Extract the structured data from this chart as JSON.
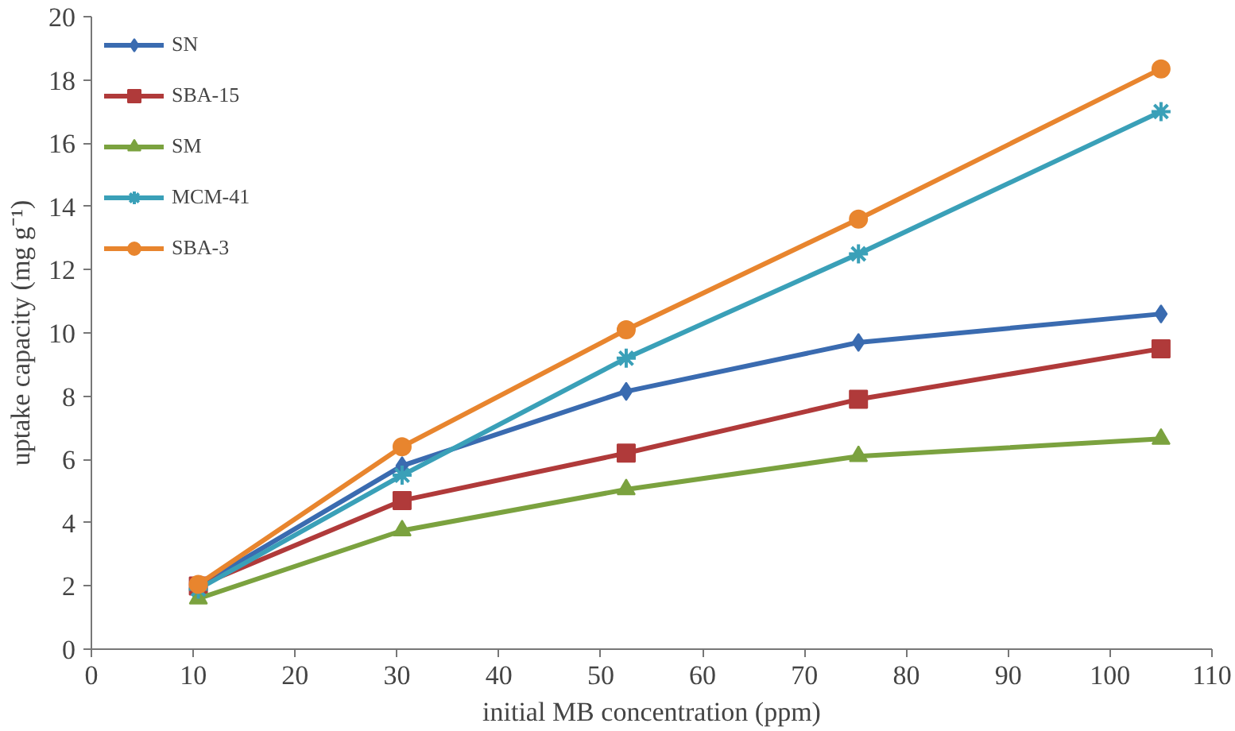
{
  "chart_data": {
    "type": "line",
    "xlabel": "initial MB concentration (ppm)",
    "ylabel": "uptake capacity (mg g⁻¹)",
    "x": [
      10.5,
      30.5,
      52.5,
      75.3,
      105
    ],
    "series": [
      {
        "name": "SN",
        "color": "#3a6bb0",
        "marker": "diamond",
        "values": [
          2.0,
          5.8,
          8.15,
          9.7,
          10.6
        ]
      },
      {
        "name": "SBA-15",
        "color": "#b03a3a",
        "marker": "square",
        "values": [
          2.0,
          4.7,
          6.2,
          7.9,
          9.5
        ]
      },
      {
        "name": "SM",
        "color": "#7ba23f",
        "marker": "triangle",
        "values": [
          1.6,
          3.75,
          5.05,
          6.1,
          6.65
        ]
      },
      {
        "name": "MCM-41",
        "color": "#3aa0b8",
        "marker": "cross",
        "values": [
          1.9,
          5.5,
          9.2,
          12.5,
          17.0
        ]
      },
      {
        "name": "SBA-3",
        "color": "#e8852e",
        "marker": "circle",
        "values": [
          2.05,
          6.4,
          10.1,
          13.6,
          18.35
        ]
      }
    ],
    "xlim": [
      0,
      110
    ],
    "xticks": [
      0,
      10,
      20,
      30,
      40,
      50,
      60,
      70,
      80,
      90,
      100,
      110
    ],
    "ylim": [
      0,
      20
    ],
    "yticks": [
      0,
      2,
      4,
      6,
      8,
      10,
      12,
      14,
      16,
      18,
      20
    ],
    "grid": false,
    "legend": "top left",
    "line_style": "solid"
  }
}
